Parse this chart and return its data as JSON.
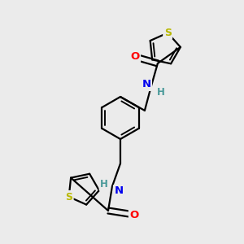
{
  "background_color": "#ebebeb",
  "bond_color": "#000000",
  "atom_colors": {
    "S": "#b8b800",
    "O": "#ff0000",
    "N": "#0000ee",
    "H": "#4a9a9a",
    "C": "#000000"
  },
  "figsize": [
    3.0,
    3.0
  ],
  "dpi": 100
}
